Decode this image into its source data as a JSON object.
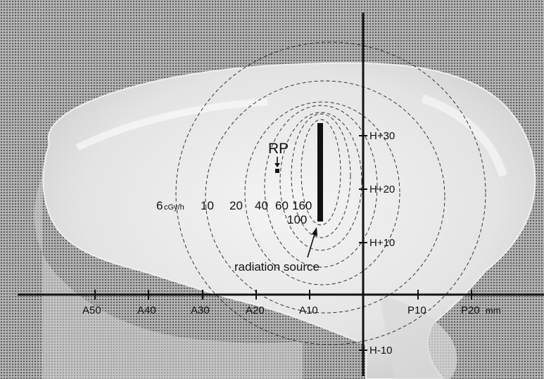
{
  "point_label": "RP",
  "source_label": "radiation source",
  "dose_labels": {
    "unit_value": "6",
    "unit": "cGy/h",
    "v10": "10",
    "v20": "20",
    "v40": "40",
    "v60": "60",
    "v160": "160",
    "v100": "100"
  },
  "x_ticks": [
    "A50",
    "A40",
    "A30",
    "A20",
    "A10",
    "P10",
    "P20"
  ],
  "x_unit": "mm",
  "y_ticks": [
    "H+30",
    "H+20",
    "H+10",
    "H-10"
  ],
  "colors": {
    "background": "#9a9a9a",
    "specimen": "#e6e6e6",
    "lines": "#111111"
  }
}
